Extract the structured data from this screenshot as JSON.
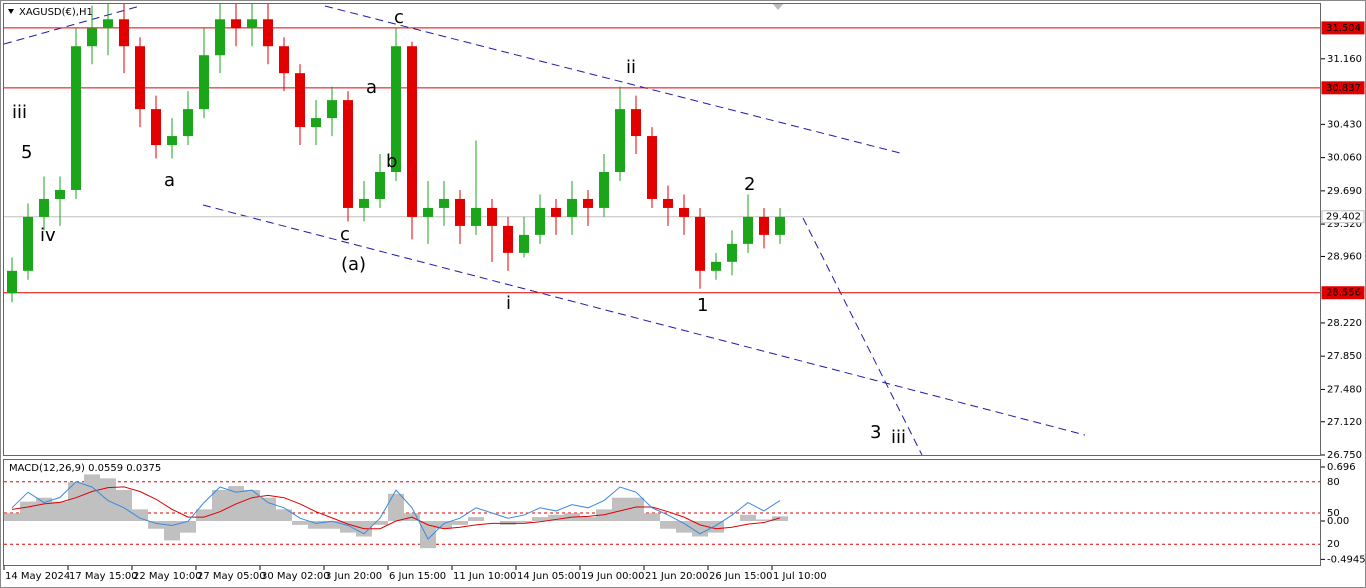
{
  "chart_data": [
    {
      "type": "candlestick",
      "title": "XAGUSD(€),H1",
      "up_color": "#1aa51a",
      "down_color": "#e00000",
      "xlim": [
        0,
        82.25
      ],
      "xticks": [
        {
          "value": 0,
          "label": "14 May 2024"
        },
        {
          "value": 4,
          "label": "17 May 15:00"
        },
        {
          "value": 8,
          "label": "22 May 10:00"
        },
        {
          "value": 12,
          "label": "27 May 05:00"
        },
        {
          "value": 16,
          "label": "30 May 02:00"
        },
        {
          "value": 20,
          "label": "3 Jun 20:00"
        },
        {
          "value": 24,
          "label": "6 Jun 15:00"
        },
        {
          "value": 28,
          "label": "11 Jun 10:00"
        },
        {
          "value": 32,
          "label": "14 Jun 05:00"
        },
        {
          "value": 36,
          "label": "19 Jun 00:00"
        },
        {
          "value": 40,
          "label": "21 Jun 20:00"
        },
        {
          "value": 44,
          "label": "26 Jun 15:00"
        },
        {
          "value": 48,
          "label": "1 Jul 10:00"
        }
      ],
      "ylim": [
        26.75,
        31.77
      ],
      "yticks": [
        {
          "value": 31.16,
          "label": "31.160"
        },
        {
          "value": 30.43,
          "label": "30.430"
        },
        {
          "value": 30.06,
          "label": "30.060"
        },
        {
          "value": 29.69,
          "label": "29.690"
        },
        {
          "value": 29.32,
          "label": "29.320"
        },
        {
          "value": 28.96,
          "label": "28.960"
        },
        {
          "value": 28.22,
          "label": "28.220"
        },
        {
          "value": 27.85,
          "label": "27.850"
        },
        {
          "value": 27.48,
          "label": "27.480"
        },
        {
          "value": 27.12,
          "label": "27.120"
        },
        {
          "value": 26.75,
          "label": "26.750"
        }
      ],
      "levels": [
        {
          "value": 31.504,
          "label": "31.504",
          "color": "#e00000",
          "label_color": "#e00000",
          "text_color": "#ffffff"
        },
        {
          "value": 30.837,
          "label": "30.837",
          "color": "#e00000",
          "label_color": "#e00000",
          "text_color": "#ffffff"
        },
        {
          "value": 29.402,
          "label": "29.402",
          "color": "#c0c0c0",
          "label_color": "#ffffff",
          "text_color": "#000000"
        },
        {
          "value": 28.556,
          "label": "28.556",
          "color": "#e00000",
          "label_color": "#e00000",
          "text_color": "#ffffff"
        }
      ],
      "open": [
        28.55,
        28.8,
        29.4,
        29.6,
        29.7,
        31.3,
        31.5,
        31.6,
        31.3,
        30.6,
        30.2,
        30.3,
        30.6,
        31.2,
        31.6,
        31.5,
        31.6,
        31.3,
        31.0,
        30.4,
        30.5,
        30.7,
        29.5,
        29.6,
        29.9,
        31.3,
        29.4,
        29.5,
        29.6,
        29.3,
        29.5,
        29.3,
        29.0,
        29.2,
        29.5,
        29.4,
        29.6,
        29.5,
        29.9,
        30.6,
        30.3,
        29.6,
        29.5,
        29.4,
        28.8,
        28.9,
        29.1,
        29.4,
        29.2
      ],
      "high": [
        28.95,
        29.55,
        29.85,
        29.85,
        31.5,
        31.75,
        31.77,
        31.77,
        31.4,
        30.75,
        30.5,
        30.8,
        31.5,
        31.77,
        31.77,
        31.77,
        31.77,
        31.4,
        31.1,
        30.7,
        30.85,
        30.8,
        29.8,
        30.1,
        31.5,
        31.35,
        29.8,
        29.8,
        29.7,
        30.25,
        29.6,
        29.4,
        29.4,
        29.65,
        29.6,
        29.8,
        29.7,
        30.1,
        30.85,
        30.75,
        30.4,
        29.75,
        29.65,
        29.5,
        29.0,
        29.25,
        29.65,
        29.5,
        29.5
      ],
      "low": [
        28.45,
        28.7,
        29.25,
        29.3,
        29.6,
        31.1,
        31.2,
        31.0,
        30.4,
        30.05,
        30.05,
        30.2,
        30.5,
        31.0,
        31.3,
        31.3,
        31.1,
        30.8,
        30.2,
        30.2,
        30.3,
        29.35,
        29.35,
        29.5,
        29.8,
        29.15,
        29.1,
        29.3,
        29.1,
        29.2,
        28.9,
        28.8,
        28.95,
        29.1,
        29.2,
        29.2,
        29.3,
        29.4,
        29.8,
        30.1,
        29.5,
        29.3,
        29.2,
        28.6,
        28.7,
        28.75,
        29.0,
        29.05,
        29.1
      ],
      "close": [
        28.8,
        29.4,
        29.6,
        29.7,
        31.3,
        31.5,
        31.6,
        31.3,
        30.6,
        30.2,
        30.3,
        30.6,
        31.2,
        31.6,
        31.5,
        31.6,
        31.3,
        31.0,
        30.4,
        30.5,
        30.7,
        29.5,
        29.6,
        29.9,
        31.3,
        29.4,
        29.5,
        29.6,
        29.3,
        29.5,
        29.3,
        29.0,
        29.2,
        29.5,
        29.4,
        29.6,
        29.5,
        29.9,
        30.6,
        30.3,
        29.6,
        29.5,
        29.4,
        28.8,
        28.9,
        29.1,
        29.4,
        29.2,
        29.4
      ],
      "annotations": [
        {
          "text": "iii",
          "color": "#e020d0"
        },
        {
          "text": "5",
          "color": "#000000"
        },
        {
          "text": "a",
          "color": "#e020d0"
        },
        {
          "text": "iv",
          "color": "#e020d0"
        },
        {
          "text": "c",
          "color": "#e020d0"
        },
        {
          "text": "a",
          "color": "#e020d0"
        },
        {
          "text": "b",
          "color": "#e020d0"
        },
        {
          "text": "c",
          "color": "#e020d0"
        },
        {
          "text": "(a)",
          "color": "#1c1cc8"
        },
        {
          "text": "ii",
          "color": "#e020d0"
        },
        {
          "text": "2",
          "color": "#000000"
        },
        {
          "text": "1",
          "color": "#000000"
        },
        {
          "text": "i",
          "color": "#e020d0"
        },
        {
          "text": "3",
          "color": "#000000"
        },
        {
          "text": "iii",
          "color": "#e020d0"
        }
      ]
    },
    {
      "type": "macd",
      "title": "MACD(12,26,9) 0.0559 0.0375",
      "ylim": [
        -0.567,
        0.773
      ],
      "yticks": [
        0.696,
        {
          "value": 0,
          "label": "0.00"
        },
        -0.4945
      ],
      "y2lim": [
        0,
        100
      ],
      "y2ticks": [
        80,
        50,
        20
      ],
      "level_color": "#e00000",
      "series": [
        {
          "kind": "histogram",
          "color": "#c0c0c0",
          "values": [
            0.1,
            0.25,
            0.3,
            0.25,
            0.5,
            0.6,
            0.55,
            0.4,
            0.15,
            -0.1,
            -0.25,
            -0.15,
            0.15,
            0.4,
            0.45,
            0.4,
            0.3,
            0.15,
            -0.05,
            -0.1,
            -0.1,
            -0.15,
            -0.2,
            -0.05,
            0.35,
            0.1,
            -0.35,
            -0.1,
            -0.05,
            0.05,
            0.0,
            -0.05,
            -0.02,
            0.05,
            0.08,
            0.1,
            0.05,
            0.15,
            0.3,
            0.3,
            0.1,
            -0.1,
            -0.15,
            -0.2,
            -0.15,
            0.0,
            0.08,
            0.02,
            0.06
          ]
        },
        {
          "kind": "line",
          "color": "#e00000",
          "values": [
            0.15,
            0.18,
            0.22,
            0.24,
            0.3,
            0.38,
            0.43,
            0.44,
            0.38,
            0.28,
            0.15,
            0.05,
            0.05,
            0.12,
            0.22,
            0.3,
            0.33,
            0.3,
            0.22,
            0.12,
            0.04,
            -0.04,
            -0.1,
            -0.1,
            0.0,
            0.05,
            -0.05,
            -0.1,
            -0.08,
            -0.05,
            -0.03,
            -0.03,
            -0.03,
            -0.01,
            0.02,
            0.05,
            0.06,
            0.08,
            0.13,
            0.18,
            0.18,
            0.12,
            0.05,
            -0.05,
            -0.1,
            -0.08,
            -0.04,
            -0.02,
            0.04
          ]
        },
        {
          "kind": "line",
          "axis": "y2",
          "color": "#3a8ae0",
          "values": [
            55,
            70,
            60,
            65,
            80,
            75,
            62,
            55,
            45,
            40,
            38,
            42,
            60,
            75,
            70,
            72,
            60,
            55,
            45,
            40,
            42,
            38,
            30,
            45,
            72,
            55,
            25,
            40,
            45,
            55,
            50,
            45,
            48,
            55,
            52,
            58,
            55,
            62,
            75,
            70,
            55,
            48,
            40,
            30,
            38,
            48,
            60,
            52,
            62
          ]
        }
      ]
    }
  ]
}
